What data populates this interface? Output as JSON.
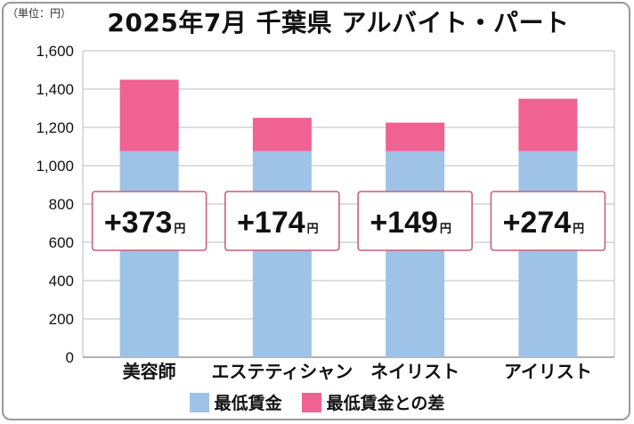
{
  "unit_label": "（単位：円）",
  "chart_data": {
    "type": "bar",
    "stacked": true,
    "title": "2025年7月 千葉県 アルバイト・パート",
    "categories": [
      "美容師",
      "エステティシャン",
      "ネイリスト",
      "アイリスト"
    ],
    "series": [
      {
        "name": "最低賃金",
        "values": [
          1076,
          1076,
          1076,
          1076
        ],
        "color": "#9ec3e6"
      },
      {
        "name": "最低賃金との差",
        "values": [
          373,
          174,
          149,
          274
        ],
        "color": "#f06292"
      }
    ],
    "diff_labels": {
      "prefix": "+",
      "values": [
        "373",
        "174",
        "149",
        "274"
      ],
      "unit": "円"
    },
    "yticks": [
      "0",
      "200",
      "400",
      "600",
      "800",
      "1,000",
      "1,200",
      "1,400",
      "1,600"
    ],
    "ylim": [
      0,
      1600
    ],
    "grid": true,
    "legend_position": "bottom"
  }
}
